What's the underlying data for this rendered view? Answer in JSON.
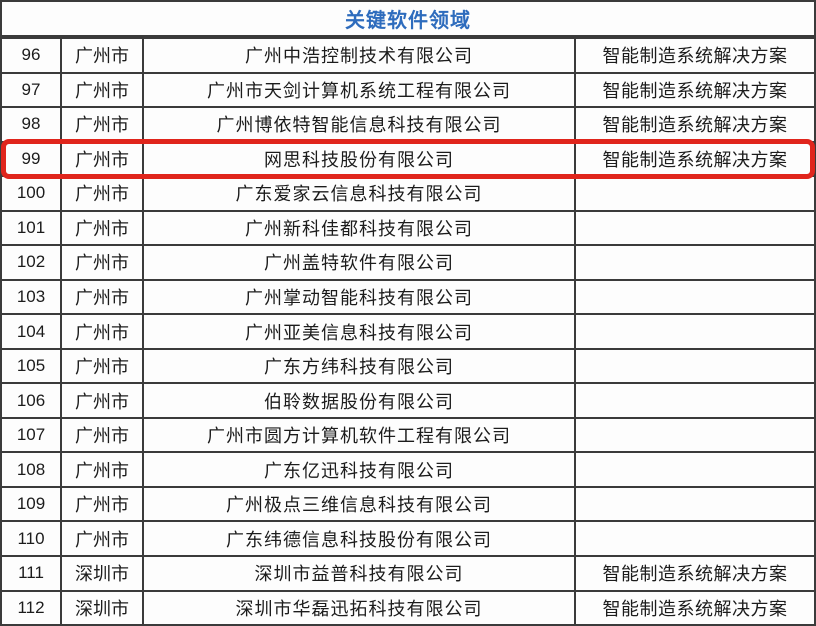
{
  "table": {
    "title": "关键软件领域",
    "highlighted_row_number": "99",
    "rows": [
      {
        "num": "96",
        "city": "广州市",
        "company": "广州中浩控制技术有限公司",
        "field": "智能制造系统解决方案"
      },
      {
        "num": "97",
        "city": "广州市",
        "company": "广州市天剑计算机系统工程有限公司",
        "field": "智能制造系统解决方案"
      },
      {
        "num": "98",
        "city": "广州市",
        "company": "广州博依特智能信息科技有限公司",
        "field": "智能制造系统解决方案"
      },
      {
        "num": "99",
        "city": "广州市",
        "company": "网思科技股份有限公司",
        "field": "智能制造系统解决方案"
      },
      {
        "num": "100",
        "city": "广州市",
        "company": "广东爱家云信息科技有限公司",
        "field": ""
      },
      {
        "num": "101",
        "city": "广州市",
        "company": "广州新科佳都科技有限公司",
        "field": ""
      },
      {
        "num": "102",
        "city": "广州市",
        "company": "广州盖特软件有限公司",
        "field": ""
      },
      {
        "num": "103",
        "city": "广州市",
        "company": "广州掌动智能科技有限公司",
        "field": ""
      },
      {
        "num": "104",
        "city": "广州市",
        "company": "广州亚美信息科技有限公司",
        "field": ""
      },
      {
        "num": "105",
        "city": "广州市",
        "company": "广东方纬科技有限公司",
        "field": ""
      },
      {
        "num": "106",
        "city": "广州市",
        "company": "伯聆数据股份有限公司",
        "field": ""
      },
      {
        "num": "107",
        "city": "广州市",
        "company": "广州市圆方计算机软件工程有限公司",
        "field": ""
      },
      {
        "num": "108",
        "city": "广州市",
        "company": "广东亿迅科技有限公司",
        "field": ""
      },
      {
        "num": "109",
        "city": "广州市",
        "company": "广州极点三维信息科技有限公司",
        "field": ""
      },
      {
        "num": "110",
        "city": "广州市",
        "company": "广东纬德信息科技股份有限公司",
        "field": ""
      },
      {
        "num": "111",
        "city": "深圳市",
        "company": "深圳市益普科技有限公司",
        "field": "智能制造系统解决方案"
      },
      {
        "num": "112",
        "city": "深圳市",
        "company": "深圳市华磊迅拓科技有限公司",
        "field": "智能制造系统解决方案"
      }
    ]
  },
  "colors": {
    "title_blue": "#2e6cbd",
    "highlight_red": "#e0251c",
    "line": "#3b3b3b"
  }
}
